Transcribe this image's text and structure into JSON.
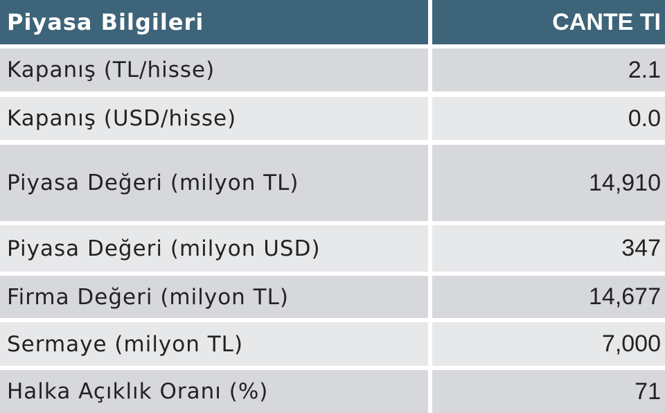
{
  "table": {
    "header": [
      "Piyasa Bilgileri",
      "CANTE TI"
    ],
    "rows": [
      [
        "Kapanış (TL/hisse)",
        "2.1"
      ],
      [
        "Kapanış (USD/hisse)",
        "0.0"
      ],
      [
        "Piyasa Değeri (milyon TL)",
        "14,910"
      ],
      [
        "Piyasa Değeri (milyon USD)",
        "347"
      ],
      [
        "Firma Değeri (milyon TL)",
        "14,677"
      ],
      [
        "Sermaye (milyon TL)",
        "7,000"
      ],
      [
        "Halka Açıklık Oranı (%)",
        "71"
      ]
    ]
  }
}
